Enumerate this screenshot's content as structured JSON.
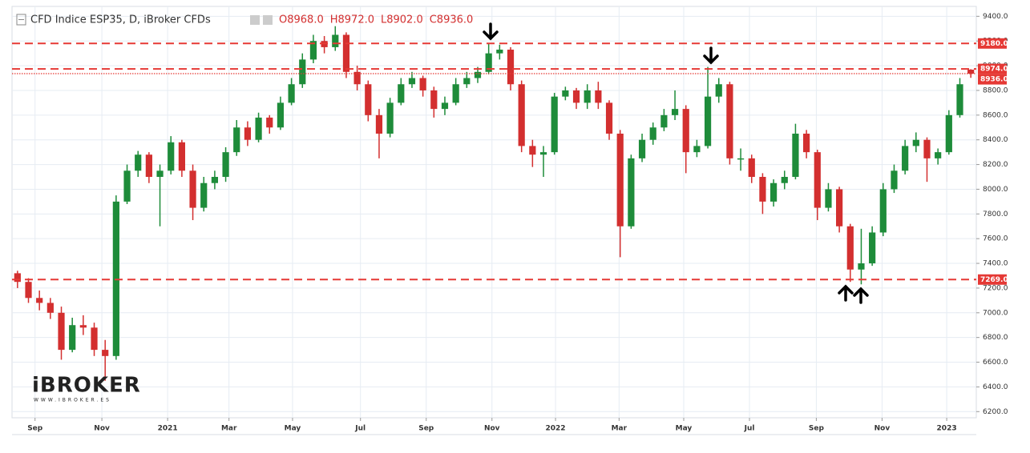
{
  "chart_data": {
    "type": "candlestick",
    "title": "CFD Indice ESP35, D, iBroker CFDs",
    "ohlc_labels": [
      "O8968.0",
      "H8972.0",
      "L8902.0",
      "C8936.0"
    ],
    "logo": "iBROKER",
    "logo_url": "WWW.IBROKER.ES",
    "up_color": "#1e8c3a",
    "down_color": "#d32f2f",
    "grid": true,
    "open": [
      7320,
      7250,
      7120,
      7080,
      7000,
      6700,
      6900,
      6880,
      6700,
      6650,
      7900,
      8150,
      8280,
      8100,
      8150,
      8380,
      8150,
      7850,
      8050,
      8100,
      8300,
      8500,
      8400,
      8580,
      8500,
      8700,
      8850,
      9050,
      9200,
      9150,
      9250,
      8950,
      8850,
      8600,
      8450,
      8700,
      8850,
      8900,
      8800,
      8650,
      8700,
      8850,
      8900,
      8950,
      9100,
      9130,
      8850,
      8350,
      8280,
      8300,
      8750,
      8800,
      8700,
      8800,
      8700,
      8450,
      7700,
      8250,
      8400,
      8500,
      8600,
      8650,
      8300,
      8350,
      8750,
      8850,
      8250,
      8250,
      8100,
      7900,
      8050,
      8100,
      8450,
      8300,
      7850,
      8000,
      7700,
      7350,
      7400,
      7650,
      8000,
      8150,
      8350,
      8400,
      8250,
      8300,
      8600,
      8968
    ],
    "high": [
      7340,
      7280,
      7180,
      7120,
      7050,
      6960,
      6980,
      6920,
      6780,
      7950,
      8200,
      8310,
      8300,
      8200,
      8430,
      8400,
      8200,
      8100,
      8150,
      8340,
      8560,
      8550,
      8620,
      8600,
      8750,
      8900,
      9100,
      9250,
      9240,
      9320,
      9270,
      9000,
      8880,
      8650,
      8740,
      8900,
      8950,
      8920,
      8830,
      8750,
      8900,
      8950,
      8990,
      9180,
      9170,
      9150,
      8880,
      8400,
      8350,
      8780,
      8830,
      8820,
      8850,
      8870,
      8720,
      8480,
      8280,
      8450,
      8540,
      8650,
      8800,
      8680,
      8400,
      8990,
      8900,
      8870,
      8330,
      8280,
      8130,
      8080,
      8150,
      8530,
      8480,
      8320,
      8050,
      8020,
      7720,
      7680,
      7700,
      8050,
      8200,
      8400,
      8460,
      8420,
      8330,
      8640,
      8900,
      8972
    ],
    "low": [
      7200,
      7080,
      7020,
      6950,
      6620,
      6680,
      6820,
      6650,
      6450,
      6620,
      7880,
      8100,
      8050,
      7700,
      8120,
      8100,
      7750,
      7820,
      8000,
      8060,
      8270,
      8350,
      8380,
      8450,
      8480,
      8680,
      8820,
      9020,
      9100,
      9120,
      8900,
      8800,
      8550,
      8250,
      8420,
      8680,
      8820,
      8750,
      8580,
      8600,
      8680,
      8820,
      8860,
      8930,
      9050,
      8800,
      8300,
      8180,
      8100,
      8280,
      8720,
      8650,
      8650,
      8650,
      8400,
      7450,
      7680,
      8220,
      8360,
      8470,
      8560,
      8130,
      8260,
      8330,
      8700,
      8200,
      8150,
      8050,
      7800,
      7860,
      8000,
      8080,
      8250,
      7750,
      7820,
      7650,
      7250,
      7230,
      7380,
      7620,
      7970,
      8120,
      8300,
      8060,
      8200,
      8280,
      8580,
      8902
    ],
    "close": [
      7250,
      7120,
      7080,
      7000,
      6700,
      6900,
      6880,
      6700,
      6650,
      7900,
      8150,
      8280,
      8100,
      8150,
      8380,
      8150,
      7850,
      8050,
      8100,
      8300,
      8500,
      8400,
      8580,
      8500,
      8700,
      8850,
      9050,
      9200,
      9150,
      9250,
      8950,
      8850,
      8600,
      8450,
      8700,
      8850,
      8900,
      8800,
      8650,
      8700,
      8850,
      8900,
      8950,
      9100,
      9130,
      8850,
      8350,
      8280,
      8300,
      8750,
      8800,
      8700,
      8800,
      8700,
      8450,
      7700,
      8250,
      8400,
      8500,
      8600,
      8650,
      8300,
      8350,
      8750,
      8850,
      8250,
      8250,
      8100,
      7900,
      8050,
      8100,
      8450,
      8300,
      7850,
      8000,
      7700,
      7350,
      7400,
      7650,
      8000,
      8150,
      8350,
      8400,
      8250,
      8300,
      8600,
      8850,
      8936
    ],
    "xlim": [
      0,
      88
    ],
    "xticks": [
      {
        "value": 2.1,
        "label": "Sep"
      },
      {
        "value": 8.2,
        "label": "Nov"
      },
      {
        "value": 14.2,
        "label": "2021"
      },
      {
        "value": 19.8,
        "label": "Mar"
      },
      {
        "value": 25.6,
        "label": "May"
      },
      {
        "value": 31.8,
        "label": "Jul"
      },
      {
        "value": 37.8,
        "label": "Sep"
      },
      {
        "value": 43.8,
        "label": "Nov"
      },
      {
        "value": 49.6,
        "label": "2022"
      },
      {
        "value": 55.4,
        "label": "Mar"
      },
      {
        "value": 61.3,
        "label": "May"
      },
      {
        "value": 67.3,
        "label": "Jul"
      },
      {
        "value": 73.4,
        "label": "Sep"
      },
      {
        "value": 79.4,
        "label": "Nov"
      },
      {
        "value": 85.3,
        "label": "2023"
      }
    ],
    "ylim": [
      6150,
      9480
    ],
    "yticks": [
      {
        "value": 6200,
        "label": "6200.0"
      },
      {
        "value": 6400,
        "label": "6400.0"
      },
      {
        "value": 6600,
        "label": "6600.0"
      },
      {
        "value": 6800,
        "label": "6800.0"
      },
      {
        "value": 7000,
        "label": "7000.0"
      },
      {
        "value": 7200,
        "label": "7200.0"
      },
      {
        "value": 7400,
        "label": "7400.0"
      },
      {
        "value": 7600,
        "label": "7600.0"
      },
      {
        "value": 7800,
        "label": "7800.0"
      },
      {
        "value": 8000,
        "label": "8000.0"
      },
      {
        "value": 8200,
        "label": "8200.0"
      },
      {
        "value": 8400,
        "label": "8400.0"
      },
      {
        "value": 8600,
        "label": "8600.0"
      },
      {
        "value": 8800,
        "label": "8800.0"
      },
      {
        "value": 9000,
        "label": "9000.0"
      },
      {
        "value": 9200,
        "label": "9200.0"
      },
      {
        "value": 9400,
        "label": "9400.0"
      }
    ],
    "levels": [
      {
        "value": 9180,
        "label": "9180.0",
        "style": "dashed",
        "color": "#e53935"
      },
      {
        "value": 8974,
        "label": "8974.0",
        "style": "dashed",
        "color": "#e53935"
      },
      {
        "value": 8936,
        "label": "8936.0",
        "style": "dotted",
        "color": "#e53935"
      },
      {
        "value": 7269,
        "label": "7269.0",
        "style": "dashed",
        "color": "#e53935"
      }
    ]
  }
}
